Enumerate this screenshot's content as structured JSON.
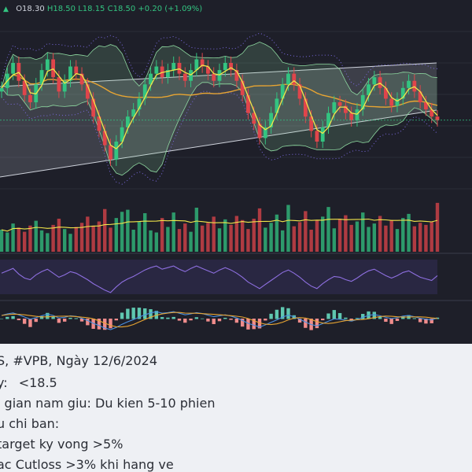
{
  "ohlc": {
    "open": "O18.30",
    "high": "H18.50",
    "low": "L18.15",
    "close": "C18.50",
    "change": "+0.20 (+1.09%)"
  },
  "notes": {
    "line1": "S, #VPB, Ngày 12/6/2024",
    "line2_label": "y:",
    "line2_value": "<18.5",
    "line3": "i gian nam giu: Du kien 5-10 phien",
    "line4": "u chi ban:",
    "line5": "target ky vong >5%",
    "line6": "ac Cutloss >3% khi hang ve"
  },
  "colors": {
    "background": "#1e1f29",
    "up": "#33c481",
    "down": "#e0454b",
    "ma_long": "#e8a532",
    "ma_short": "#f2e64a",
    "bollinger": "#8ed9a0",
    "channel": "#cfd3dc",
    "rsi": "#8e6fe0",
    "macd": "#4a8fe0",
    "signal": "#e8a532"
  },
  "chart_data": {
    "type": "candlestick",
    "symbol": "VPB",
    "last": {
      "open": 18.3,
      "high": 18.5,
      "low": 18.15,
      "close": 18.5
    },
    "close_series": [
      19.4,
      19.8,
      20.1,
      19.6,
      19.2,
      19.0,
      19.5,
      19.9,
      20.2,
      19.7,
      19.3,
      19.6,
      20.0,
      19.8,
      19.5,
      19.1,
      18.6,
      18.2,
      17.8,
      17.4,
      17.9,
      18.3,
      18.6,
      18.8,
      19.1,
      19.5,
      19.8,
      20.0,
      19.7,
      19.9,
      20.1,
      19.8,
      19.6,
      19.9,
      20.2,
      20.0,
      19.8,
      19.6,
      19.9,
      20.1,
      19.9,
      19.6,
      19.2,
      18.7,
      18.4,
      18.0,
      18.3,
      18.7,
      19.1,
      19.5,
      19.8,
      19.5,
      19.1,
      18.6,
      18.2,
      17.9,
      18.3,
      18.7,
      19.0,
      18.9,
      18.7,
      18.5,
      18.8,
      19.2,
      19.5,
      19.7,
      19.4,
      19.1,
      18.9,
      19.1,
      19.4,
      19.6,
      19.3,
      19.0,
      18.8,
      18.6,
      18.5
    ],
    "volume_series": [
      3.2,
      2.8,
      4.1,
      3.5,
      2.9,
      3.8,
      4.5,
      3.1,
      2.7,
      3.9,
      4.8,
      3.3,
      2.6,
      3.6,
      4.2,
      5.1,
      3.8,
      4.4,
      6.2,
      3.5,
      4.9,
      5.8,
      6.1,
      3.2,
      4.4,
      5.6,
      3.1,
      2.8,
      4.9,
      3.6,
      5.7,
      3.3,
      4.1,
      2.9,
      6.4,
      3.8,
      4.2,
      5.1,
      3.4,
      4.7,
      3.9,
      5.2,
      4.6,
      3.3,
      4.8,
      6.3,
      3.5,
      4.2,
      5.4,
      3.1,
      6.8,
      3.7,
      4.3,
      5.9,
      3.2,
      4.6,
      5.1,
      6.5,
      3.4,
      4.8,
      5.3,
      3.9,
      4.4,
      5.7,
      3.6,
      4.1,
      5.2,
      3.8,
      4.6,
      3.3,
      4.9,
      5.5,
      3.7,
      4.2,
      3.9,
      4.4,
      7.1
    ],
    "rsi_series": [
      55,
      58,
      61,
      54,
      49,
      47,
      53,
      57,
      60,
      55,
      50,
      53,
      57,
      55,
      51,
      47,
      42,
      38,
      34,
      31,
      38,
      44,
      48,
      51,
      55,
      59,
      62,
      64,
      60,
      62,
      64,
      60,
      57,
      61,
      64,
      61,
      58,
      55,
      59,
      62,
      59,
      55,
      50,
      44,
      40,
      36,
      41,
      46,
      51,
      56,
      59,
      55,
      50,
      44,
      39,
      36,
      42,
      47,
      51,
      50,
      47,
      45,
      49,
      54,
      58,
      60,
      56,
      52,
      49,
      52,
      56,
      58,
      54,
      50,
      48,
      46,
      52
    ],
    "macd_series": [
      0.1,
      0.15,
      0.18,
      0.12,
      0.05,
      -0.02,
      0.03,
      0.09,
      0.14,
      0.1,
      0.02,
      0.04,
      0.09,
      0.07,
      0.01,
      -0.06,
      -0.15,
      -0.22,
      -0.3,
      -0.35,
      -0.28,
      -0.18,
      -0.1,
      -0.03,
      0.05,
      0.12,
      0.18,
      0.22,
      0.17,
      0.19,
      0.22,
      0.17,
      0.12,
      0.15,
      0.19,
      0.16,
      0.11,
      0.06,
      0.09,
      0.12,
      0.08,
      0.02,
      -0.06,
      -0.15,
      -0.21,
      -0.27,
      -0.2,
      -0.12,
      -0.04,
      0.05,
      0.11,
      0.06,
      -0.02,
      -0.11,
      -0.19,
      -0.23,
      -0.16,
      -0.08,
      -0.01,
      -0.02,
      -0.05,
      -0.08,
      -0.03,
      0.04,
      0.1,
      0.13,
      0.09,
      0.04,
      0.0,
      0.03,
      0.08,
      0.1,
      0.06,
      0.01,
      -0.02,
      -0.04,
      0.02
    ]
  }
}
